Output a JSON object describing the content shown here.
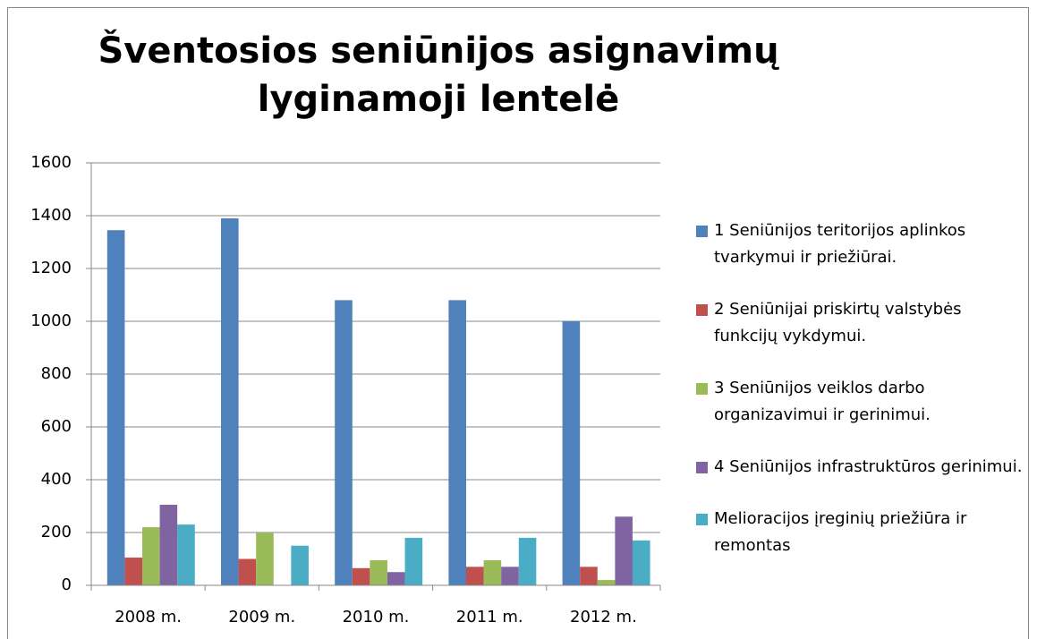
{
  "chart_data": {
    "type": "bar",
    "title": "Šventosios seniūnijos asignavimų lyginamoji lentelė",
    "categories": [
      "2008 m.",
      "2009 m.",
      "2010 m.",
      "2011 m.",
      "2012 m."
    ],
    "series": [
      {
        "name": "1 Seniūnijos teritorijos aplinkos tvarkymui ir priežiūrai.",
        "color": "#4f81bd",
        "values": [
          1345,
          1390,
          1080,
          1080,
          1000
        ]
      },
      {
        "name": "2 Seniūnijai priskirtų valstybės funkcijų vykdymui.",
        "color": "#c0504d",
        "values": [
          105,
          100,
          65,
          70,
          70
        ]
      },
      {
        "name": "3 Seniūnijos veiklos darbo organizavimui ir gerinimui.",
        "color": "#9bbb59",
        "values": [
          220,
          200,
          95,
          95,
          20
        ]
      },
      {
        "name": "4 Seniūnijos infrastruktūros gerinimui.",
        "color": "#8064a2",
        "values": [
          305,
          0,
          50,
          70,
          260
        ]
      },
      {
        "name": "Melioracijos įreginių priežiūra ir remontas",
        "color": "#4bacc6",
        "values": [
          230,
          150,
          180,
          180,
          170
        ]
      }
    ],
    "ylim": [
      0,
      1600
    ],
    "yticks": [
      0,
      200,
      400,
      600,
      800,
      1000,
      1200,
      1400,
      1600
    ],
    "grid": true,
    "legend": "right"
  }
}
